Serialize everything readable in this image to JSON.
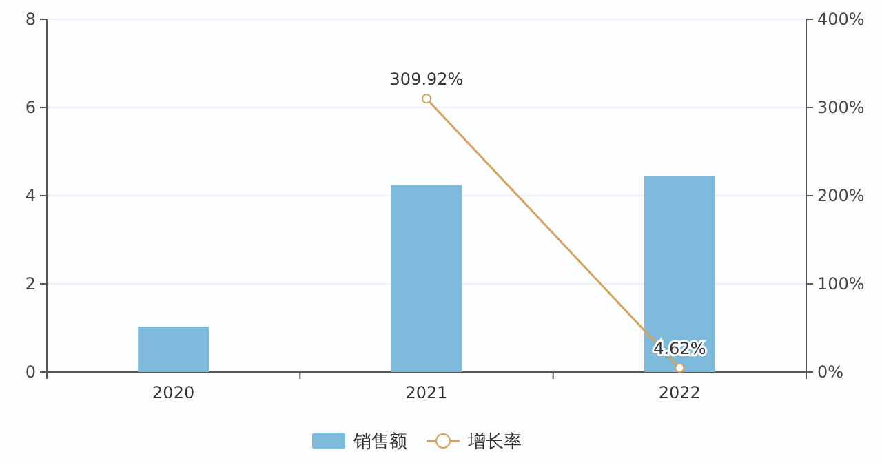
{
  "chart_data": {
    "type": "bar",
    "categories": [
      "2020",
      "2021",
      "2022"
    ],
    "series": [
      {
        "name": "销售额",
        "color": "#7dbadc",
        "values": [
          1.03,
          4.24,
          4.44
        ]
      },
      {
        "name": "增长率",
        "type": "line",
        "axis": "y2",
        "color": "#d9a05b",
        "values": [
          null,
          309.92,
          4.62
        ],
        "value_labels": [
          null,
          "309.92%",
          "4.62%"
        ]
      }
    ],
    "ylim": [
      0,
      8
    ],
    "yticks": [
      0,
      2,
      4,
      6,
      8
    ],
    "y2lim": [
      0,
      400
    ],
    "y2ticks": [
      {
        "value": 0,
        "label": "0%"
      },
      {
        "value": 100,
        "label": "100%"
      },
      {
        "value": 200,
        "label": "200%"
      },
      {
        "value": 300,
        "label": "300%"
      },
      {
        "value": 400,
        "label": "400%"
      }
    ],
    "grid": "y",
    "legend": "bottom",
    "marker": "circle"
  }
}
